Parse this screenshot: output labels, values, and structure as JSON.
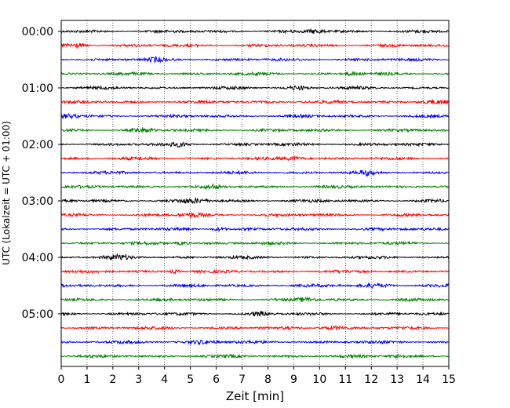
{
  "chart_data": {
    "type": "line",
    "title": "",
    "xlabel": "Zeit  [min]",
    "ylabel": "UTC (Lokalzeit = UTC + 01:00)",
    "xlim": [
      0,
      15
    ],
    "x_ticks": [
      "0",
      "1",
      "2",
      "3",
      "4",
      "5",
      "6",
      "7",
      "8",
      "9",
      "10",
      "11",
      "12",
      "13",
      "14",
      "15"
    ],
    "y_tick_labels": [
      "00:00",
      "01:00",
      "02:00",
      "03:00",
      "04:00",
      "05:00"
    ],
    "trace_interval_min": 15,
    "trace_count": 24,
    "trace_colors": [
      "#000000",
      "#ff0000",
      "#0000ff",
      "#008000"
    ],
    "grid_x": true,
    "grid_style": "dotted",
    "legend": "none"
  }
}
